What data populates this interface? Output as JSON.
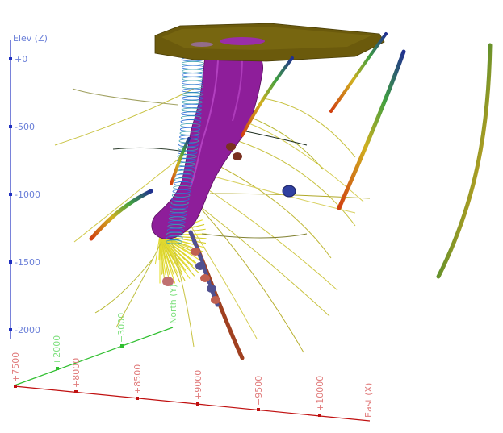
{
  "axes": {
    "elev": {
      "title": "Elev (Z)",
      "color": "#6a7fd8",
      "ticks": [
        "+0",
        "-500",
        "-1000",
        "-1500",
        "-2000"
      ]
    },
    "north": {
      "title": "North (Y)",
      "color": "#7fe07f",
      "ticks": [
        "+2000",
        "+3000"
      ]
    },
    "east": {
      "title": "East (X)",
      "color": "#e07a7a",
      "ticks": [
        "+7500",
        "+8000",
        "+8500",
        "+9000",
        "+9500",
        "+10000"
      ]
    }
  },
  "colors": {
    "orebody": "#8e1e9a",
    "orebody_highlight": "#c24fd0",
    "surface": "#6b5a0c",
    "drillhole": "#e0d860",
    "spiral": "#2b6fd6",
    "axis_elev": "#2030c0",
    "axis_north": "#2fbf2f",
    "axis_east": "#c01010"
  },
  "icons": [
    "orebody-shape",
    "topography-surface",
    "drillhole-trace",
    "sample-disc"
  ]
}
